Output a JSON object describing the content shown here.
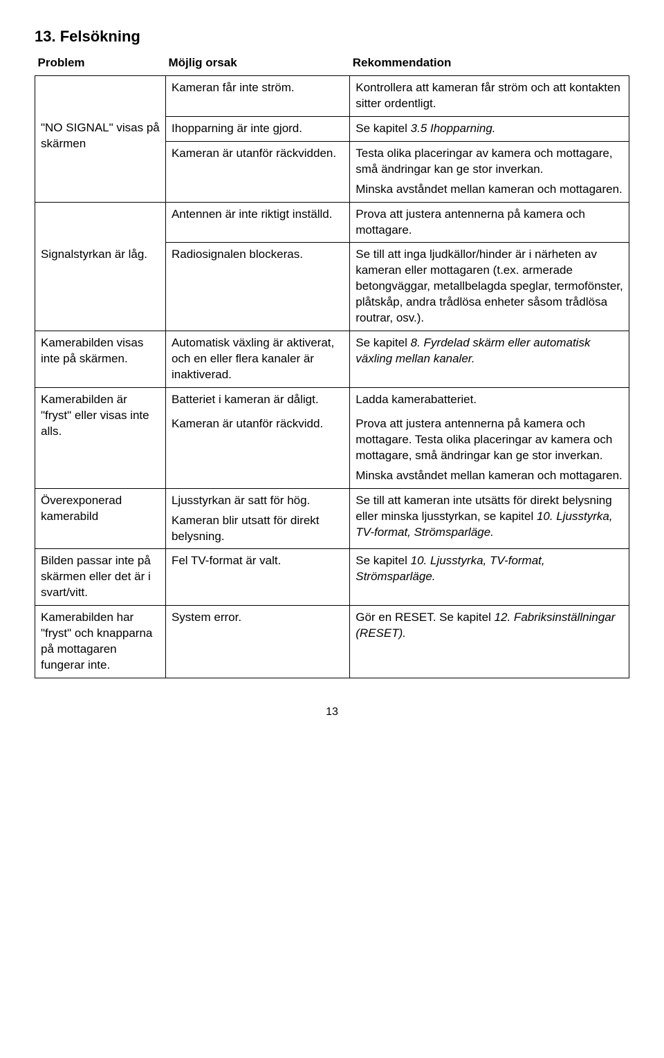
{
  "heading": "13. Felsökning",
  "columns": {
    "c1": "Problem",
    "c2": "Möjlig orsak",
    "c3": "Rekommendation"
  },
  "r1": {
    "problem": "\"NO SIGNAL\" visas på skärmen",
    "cause_a": "Kameran får inte ström.",
    "rec_a": "Kontrollera att kameran får ström och att kontakten sitter ordentligt.",
    "cause_b": "Ihopparning är inte gjord.",
    "rec_b_pre": "Se kapitel ",
    "rec_b_ital": "3.5 Ihopparning.",
    "cause_c": "Kameran är utanför räckvidden.",
    "rec_c1": "Testa olika placeringar av kamera och mottagare, små ändringar kan ge stor inverkan.",
    "rec_c2": "Minska avståndet mellan kameran och mottagaren."
  },
  "r2": {
    "problem": "Signalstyrkan är låg.",
    "cause_a": "Antennen är inte riktigt inställd.",
    "rec_a": "Prova att justera antennerna på kamera och mottagare.",
    "cause_b": "Radiosignalen blockeras.",
    "rec_b": "Se till att inga ljudkällor/hinder är i närheten av kameran eller mottagaren (t.ex. armerade betongväggar, metallbelagda speglar, termofönster, plåtskåp, andra trådlösa enheter såsom trådlösa routrar, osv.)."
  },
  "r3": {
    "problem": "Kamerabilden visas inte på skärmen.",
    "cause": "Automatisk växling är aktiverat, och en eller flera kanaler är inaktiverad.",
    "rec_pre": "Se kapitel ",
    "rec_ital": "8. Fyrdelad skärm eller automatisk växling mellan kanaler."
  },
  "r4": {
    "problem": "Kamerabilden är \"fryst\" eller visas inte alls.",
    "cause_a": "Batteriet i kameran är dåligt.",
    "rec_a": "Ladda kamerabatteriet.",
    "cause_b": "Kameran är utanför räckvidd.",
    "rec_b1": "Prova att justera antennerna på kamera och mottagare. Testa olika placeringar av kamera och mottagare, små ändringar kan ge stor inverkan.",
    "rec_b2": "Minska avståndet mellan kameran och mottagaren."
  },
  "r5": {
    "problem": "Överexponerad kamerabild",
    "cause1": "Ljusstyrkan är satt för hög.",
    "cause2": "Kameran blir utsatt för direkt belysning.",
    "rec_pre": "Se till att kameran inte utsätts för direkt belysning eller minska ljusstyrkan, se kapitel ",
    "rec_ital": "10. Ljusstyrka, TV-format, Strömsparläge."
  },
  "r6": {
    "problem": "Bilden passar inte på skärmen eller det är i svart/vitt.",
    "cause": "Fel TV-format är valt.",
    "rec_pre": "Se kapitel ",
    "rec_ital": "10. Ljusstyrka, TV-format, Strömsparläge."
  },
  "r7": {
    "problem": "Kamerabilden har \"fryst\" och knapparna på mottagaren fungerar inte.",
    "cause": "System error.",
    "rec_pre": "Gör en RESET. Se kapitel ",
    "rec_ital": "12. Fabriksinställningar (RESET)."
  },
  "pagenum": "13"
}
